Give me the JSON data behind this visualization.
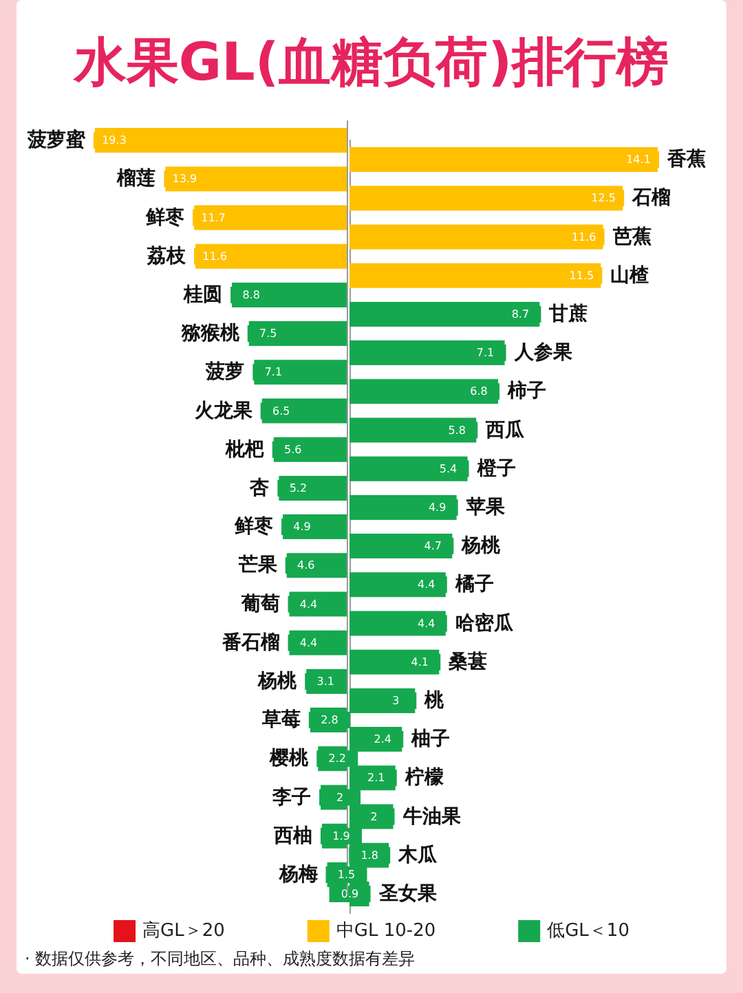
{
  "chart_data": [
    {
      "type": "bar",
      "title": "水果GL(血糖负荷)排行榜",
      "orientation": "horizontal",
      "data_labels": true,
      "legend": false,
      "categories": [
        "菠萝蜜",
        "榴莲",
        "鲜枣",
        "荔枝",
        "桂圆",
        "猕猴桃",
        "菠萝",
        "火龙果",
        "枇杷",
        "杏",
        "鲜枣",
        "芒果",
        "葡萄",
        "番石榴",
        "杨桃",
        "草莓",
        "樱桃",
        "李子",
        "西柚",
        "杨梅"
      ],
      "values": [
        19.3,
        13.9,
        11.7,
        11.6,
        8.8,
        7.5,
        7.1,
        6.5,
        5.6,
        5.2,
        4.9,
        4.6,
        4.4,
        4.4,
        3.1,
        2.8,
        2.2,
        2,
        1.9,
        1.5
      ],
      "colors": [
        "#ffc000",
        "#ffc000",
        "#ffc000",
        "#ffc000",
        "#16a84f",
        "#16a84f",
        "#16a84f",
        "#16a84f",
        "#16a84f",
        "#16a84f",
        "#16a84f",
        "#16a84f",
        "#16a84f",
        "#16a84f",
        "#16a84f",
        "#16a84f",
        "#16a84f",
        "#16a84f",
        "#16a84f",
        "#16a84f"
      ]
    },
    {
      "type": "bar",
      "orientation": "horizontal",
      "stacked": true,
      "data_labels": true,
      "legend": "bottom",
      "annotations": [
        "· 数据仅供参考，不同地区、品种、成熟度数据有差异"
      ],
      "categories": [
        "香蕉",
        "石榴",
        "芭蕉",
        "山楂",
        "甘蔗",
        "人参果",
        "柿子",
        "西瓜",
        "橙子",
        "苹果",
        "杨桃",
        "橘子",
        "哈密瓜",
        "桑葚",
        "桃",
        "柚子",
        "柠檬",
        "牛油果",
        "木瓜",
        "圣女果"
      ],
      "series": [
        {
          "name": "高GL＞20",
          "color": "#e3121b",
          "values": [
            null,
            null,
            null,
            null,
            null,
            null,
            null,
            null,
            null,
            null,
            null,
            null,
            null,
            null,
            null,
            null,
            null,
            null,
            null,
            null
          ]
        },
        {
          "name": "中GL 10-20",
          "color": "#ffc000",
          "values": [
            14.1,
            12.5,
            11.6,
            11.5,
            null,
            null,
            null,
            null,
            null,
            null,
            null,
            null,
            null,
            null,
            null,
            null,
            null,
            null,
            null,
            null
          ]
        },
        {
          "name": "低GL＜10",
          "color": "#16a84f",
          "values": [
            null,
            null,
            null,
            null,
            8.7,
            7.1,
            6.8,
            5.8,
            5.4,
            4.9,
            4.7,
            4.4,
            4.4,
            4.1,
            3,
            2.4,
            2.1,
            2,
            1.8,
            0.9
          ]
        }
      ]
    }
  ]
}
